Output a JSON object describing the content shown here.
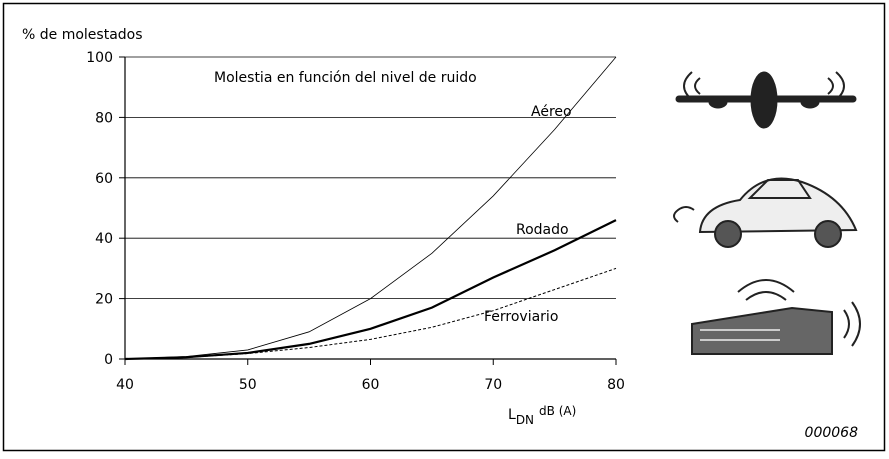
{
  "chart_data": {
    "type": "line",
    "y_label": "% de molestados",
    "annotation": "Molestia en función del nivel de ruido",
    "x_label": "L",
    "x_label_subscript": "DN",
    "x_label_unit": "dB (A)",
    "figure_id": "000068",
    "x": [
      40,
      45,
      50,
      55,
      60,
      65,
      70,
      75,
      80
    ],
    "series": [
      {
        "name": "Aéreo",
        "color": "#000000",
        "line_width": 0.8,
        "dashed": false,
        "values": [
          0,
          0.8,
          3,
          9,
          20,
          35,
          54,
          76,
          100
        ]
      },
      {
        "name": "Rodado",
        "color": "#000000",
        "line_width": 2.2,
        "dashed": false,
        "values": [
          0,
          0.6,
          2,
          5,
          10,
          17,
          27,
          36,
          46
        ]
      },
      {
        "name": "Ferroviario",
        "color": "#000000",
        "line_width": 1,
        "dashed": true,
        "values": [
          0,
          0.5,
          1.8,
          3.8,
          6.5,
          10.5,
          16,
          23,
          30
        ]
      }
    ],
    "xlim": [
      40,
      80
    ],
    "xticks": [
      40,
      50,
      60,
      70,
      80
    ],
    "ylim": [
      0,
      100
    ],
    "yticks": [
      0,
      20,
      40,
      60,
      80,
      100
    ],
    "grid": true
  }
}
